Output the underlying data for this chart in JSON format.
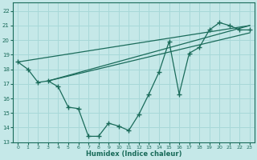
{
  "background_color": "#c5e8e8",
  "grid_color": "#a8d8d8",
  "line_color": "#1a6b5a",
  "xlabel": "Humidex (Indice chaleur)",
  "xlim": [
    -0.5,
    23.5
  ],
  "ylim": [
    13.0,
    22.6
  ],
  "xticks": [
    0,
    1,
    2,
    3,
    4,
    5,
    6,
    7,
    8,
    9,
    10,
    11,
    12,
    13,
    14,
    15,
    16,
    17,
    18,
    19,
    20,
    21,
    22,
    23
  ],
  "yticks": [
    13,
    14,
    15,
    16,
    17,
    18,
    19,
    20,
    21,
    22
  ],
  "main_x": [
    0,
    1,
    2,
    3,
    4,
    5,
    6,
    7,
    8,
    9,
    10,
    11,
    12,
    13,
    14,
    15,
    16,
    17,
    18,
    19,
    20,
    21,
    22,
    23
  ],
  "main_y": [
    18.5,
    18.0,
    17.1,
    17.2,
    16.8,
    15.4,
    15.3,
    13.4,
    13.4,
    14.3,
    14.1,
    13.8,
    14.9,
    16.3,
    17.8,
    19.9,
    16.3,
    19.1,
    19.5,
    20.7,
    21.2,
    21.0,
    20.7,
    20.7
  ],
  "line1_x": [
    0,
    23
  ],
  "line1_y": [
    18.5,
    21.0
  ],
  "line2_x": [
    3,
    23
  ],
  "line2_y": [
    17.2,
    21.0
  ],
  "line3_x": [
    3,
    23
  ],
  "line3_y": [
    17.2,
    20.5
  ]
}
